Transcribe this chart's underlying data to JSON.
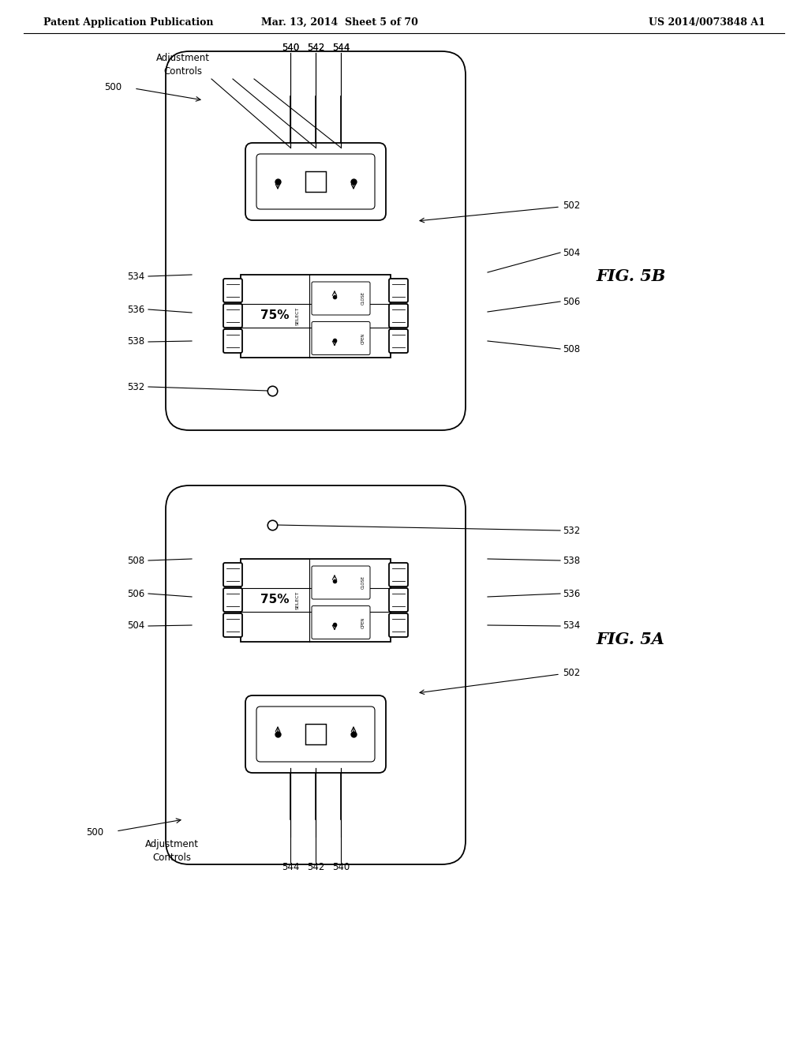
{
  "header_left": "Patent Application Publication",
  "header_mid": "Mar. 13, 2014  Sheet 5 of 70",
  "header_right": "US 2014/0073848 A1",
  "fig_b_label": "FIG. 5B",
  "fig_a_label": "FIG. 5A",
  "bg_color": "#ffffff",
  "line_color": "#000000",
  "label_fontsize": 8.5,
  "fig_fontsize": 15,
  "header_fontsize": 9
}
